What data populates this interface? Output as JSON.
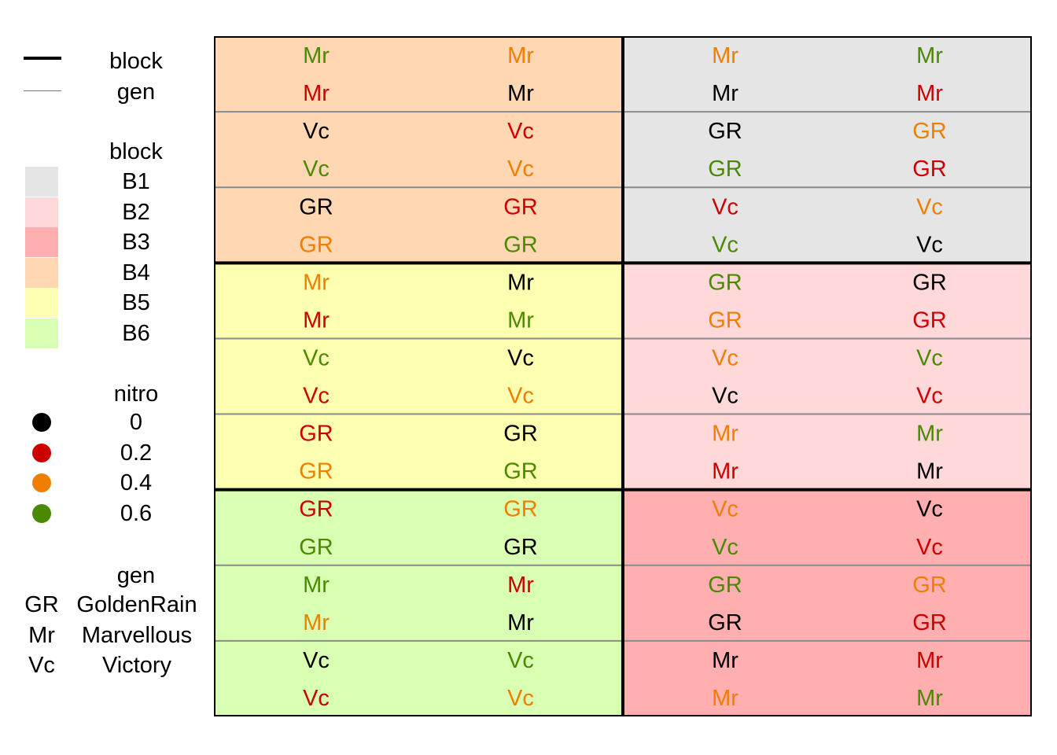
{
  "legend": {
    "lines_title": "",
    "line_items": [
      {
        "label": "block"
      },
      {
        "label": "gen"
      }
    ],
    "block_title": "block",
    "blocks": [
      {
        "label": "B1",
        "color": "#E5E5E5"
      },
      {
        "label": "B2",
        "color": "#FFD8DA"
      },
      {
        "label": "B3",
        "color": "#FFAFB0"
      },
      {
        "label": "B4",
        "color": "#FFD7B2"
      },
      {
        "label": "B5",
        "color": "#FDFFB0"
      },
      {
        "label": "B6",
        "color": "#D9FFB2"
      }
    ],
    "nitro_title": "nitro",
    "nitro": [
      {
        "label": "0",
        "color": "#000000"
      },
      {
        "label": "0.2",
        "color": "#CC0000"
      },
      {
        "label": "0.4",
        "color": "#EE7F00"
      },
      {
        "label": "0.6",
        "color": "#4A8A00"
      }
    ],
    "gen_title": "gen",
    "gen": [
      {
        "code": "GR",
        "name": "GoldenRain"
      },
      {
        "code": "Mr",
        "name": "Marvellous"
      },
      {
        "code": "Vc",
        "name": "Victory"
      }
    ]
  },
  "chart_data": {
    "type": "table",
    "title": "",
    "columns": 4,
    "rows": 18,
    "blocks_layout": [
      [
        "B4",
        "B1"
      ],
      [
        "B5",
        "B2"
      ],
      [
        "B6",
        "B3"
      ]
    ],
    "nitro_colors": {
      "0": "#000000",
      "0.2": "#CC0000",
      "0.4": "#EE7F00",
      "0.6": "#4A8A00"
    },
    "cells": [
      [
        {
          "g": "Mr",
          "n": "0.6"
        },
        {
          "g": "Mr",
          "n": "0.4"
        },
        {
          "g": "Mr",
          "n": "0.4"
        },
        {
          "g": "Mr",
          "n": "0.6"
        }
      ],
      [
        {
          "g": "Mr",
          "n": "0.2"
        },
        {
          "g": "Mr",
          "n": "0"
        },
        {
          "g": "Mr",
          "n": "0"
        },
        {
          "g": "Mr",
          "n": "0.2"
        }
      ],
      [
        {
          "g": "Vc",
          "n": "0"
        },
        {
          "g": "Vc",
          "n": "0.2"
        },
        {
          "g": "GR",
          "n": "0"
        },
        {
          "g": "GR",
          "n": "0.4"
        }
      ],
      [
        {
          "g": "Vc",
          "n": "0.6"
        },
        {
          "g": "Vc",
          "n": "0.4"
        },
        {
          "g": "GR",
          "n": "0.6"
        },
        {
          "g": "GR",
          "n": "0.2"
        }
      ],
      [
        {
          "g": "GR",
          "n": "0"
        },
        {
          "g": "GR",
          "n": "0.2"
        },
        {
          "g": "Vc",
          "n": "0.2"
        },
        {
          "g": "Vc",
          "n": "0.4"
        }
      ],
      [
        {
          "g": "GR",
          "n": "0.4"
        },
        {
          "g": "GR",
          "n": "0.6"
        },
        {
          "g": "Vc",
          "n": "0.6"
        },
        {
          "g": "Vc",
          "n": "0"
        }
      ],
      [
        {
          "g": "Mr",
          "n": "0.4"
        },
        {
          "g": "Mr",
          "n": "0"
        },
        {
          "g": "GR",
          "n": "0.6"
        },
        {
          "g": "GR",
          "n": "0"
        }
      ],
      [
        {
          "g": "Mr",
          "n": "0.2"
        },
        {
          "g": "Mr",
          "n": "0.6"
        },
        {
          "g": "GR",
          "n": "0.4"
        },
        {
          "g": "GR",
          "n": "0.2"
        }
      ],
      [
        {
          "g": "Vc",
          "n": "0.6"
        },
        {
          "g": "Vc",
          "n": "0"
        },
        {
          "g": "Vc",
          "n": "0.4"
        },
        {
          "g": "Vc",
          "n": "0.6"
        }
      ],
      [
        {
          "g": "Vc",
          "n": "0.2"
        },
        {
          "g": "Vc",
          "n": "0.4"
        },
        {
          "g": "Vc",
          "n": "0"
        },
        {
          "g": "Vc",
          "n": "0.2"
        }
      ],
      [
        {
          "g": "GR",
          "n": "0.2"
        },
        {
          "g": "GR",
          "n": "0"
        },
        {
          "g": "Mr",
          "n": "0.4"
        },
        {
          "g": "Mr",
          "n": "0.6"
        }
      ],
      [
        {
          "g": "GR",
          "n": "0.4"
        },
        {
          "g": "GR",
          "n": "0.6"
        },
        {
          "g": "Mr",
          "n": "0.2"
        },
        {
          "g": "Mr",
          "n": "0"
        }
      ],
      [
        {
          "g": "GR",
          "n": "0.2"
        },
        {
          "g": "GR",
          "n": "0.4"
        },
        {
          "g": "Vc",
          "n": "0.4"
        },
        {
          "g": "Vc",
          "n": "0"
        }
      ],
      [
        {
          "g": "GR",
          "n": "0.6"
        },
        {
          "g": "GR",
          "n": "0"
        },
        {
          "g": "Vc",
          "n": "0.6"
        },
        {
          "g": "Vc",
          "n": "0.2"
        }
      ],
      [
        {
          "g": "Mr",
          "n": "0.6"
        },
        {
          "g": "Mr",
          "n": "0.2"
        },
        {
          "g": "GR",
          "n": "0.6"
        },
        {
          "g": "GR",
          "n": "0.4"
        }
      ],
      [
        {
          "g": "Mr",
          "n": "0.4"
        },
        {
          "g": "Mr",
          "n": "0"
        },
        {
          "g": "GR",
          "n": "0"
        },
        {
          "g": "GR",
          "n": "0.2"
        }
      ],
      [
        {
          "g": "Vc",
          "n": "0"
        },
        {
          "g": "Vc",
          "n": "0.6"
        },
        {
          "g": "Mr",
          "n": "0"
        },
        {
          "g": "Mr",
          "n": "0.2"
        }
      ],
      [
        {
          "g": "Vc",
          "n": "0.2"
        },
        {
          "g": "Vc",
          "n": "0.4"
        },
        {
          "g": "Mr",
          "n": "0.4"
        },
        {
          "g": "Mr",
          "n": "0.6"
        }
      ]
    ]
  }
}
